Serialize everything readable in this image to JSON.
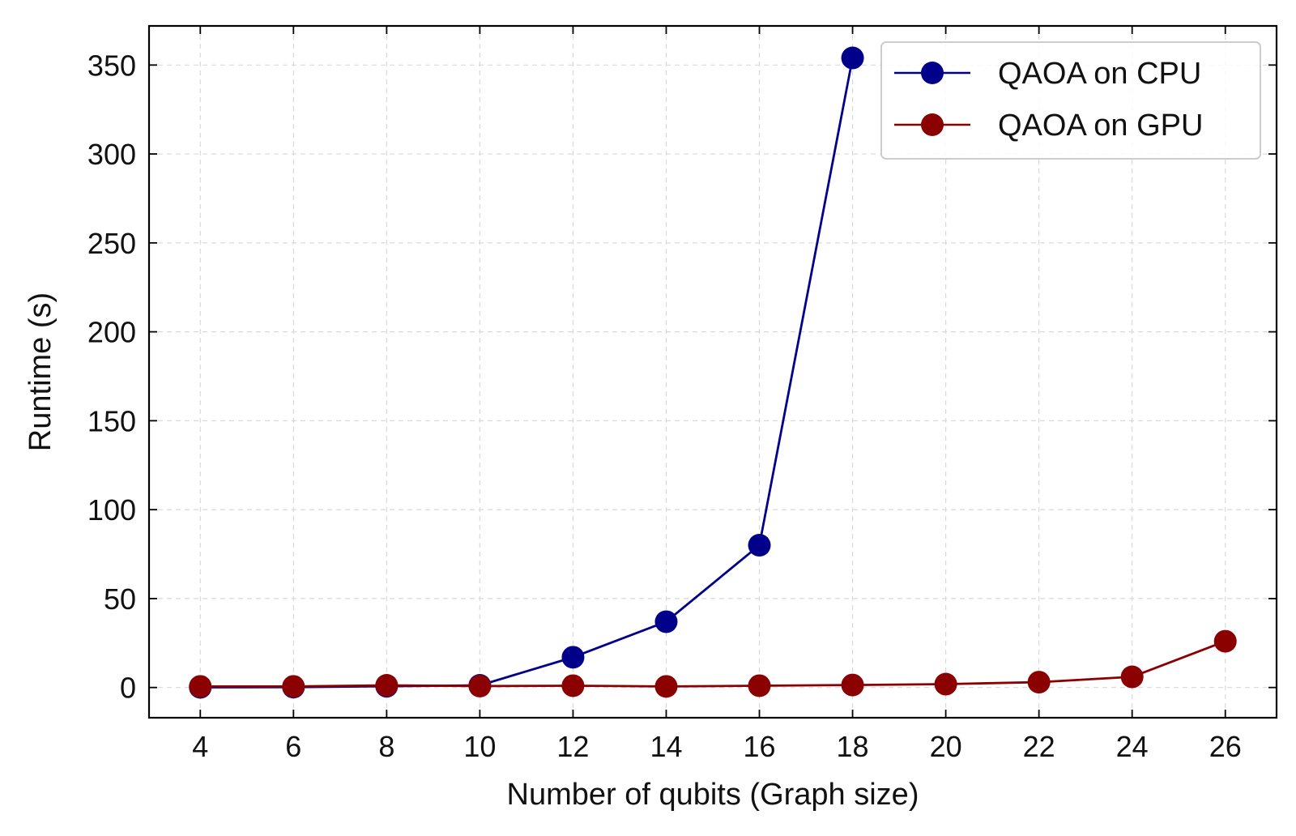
{
  "chart_data": {
    "type": "line",
    "title": "",
    "xlabel": "Number of qubits (Graph size)",
    "ylabel": "Runtime (s)",
    "x": [
      4,
      6,
      8,
      10,
      12,
      14,
      16,
      18,
      20,
      22,
      24,
      26
    ],
    "xticks": [
      "4",
      "6",
      "8",
      "10",
      "12",
      "14",
      "16",
      "18",
      "20",
      "22",
      "24",
      "26"
    ],
    "yticks": [
      "0",
      "50",
      "100",
      "150",
      "200",
      "250",
      "300",
      "350"
    ],
    "xlim": [
      2.9,
      27.1
    ],
    "ylim": [
      -17,
      372
    ],
    "grid": true,
    "legend_position": "top-right",
    "series": [
      {
        "name": "QAOA on CPU",
        "color": "#00008b",
        "x": [
          4,
          6,
          8,
          10,
          12,
          14,
          16,
          18
        ],
        "values": [
          0.1,
          0.2,
          0.7,
          1.2,
          17,
          37,
          80,
          354
        ]
      },
      {
        "name": "QAOA on GPU",
        "color": "#8b0000",
        "x": [
          4,
          6,
          8,
          10,
          12,
          14,
          16,
          18,
          20,
          22,
          24,
          26
        ],
        "values": [
          0.6,
          0.6,
          1.2,
          0.8,
          1.0,
          0.6,
          1.0,
          1.4,
          1.9,
          3.0,
          6.0,
          26
        ]
      }
    ]
  }
}
